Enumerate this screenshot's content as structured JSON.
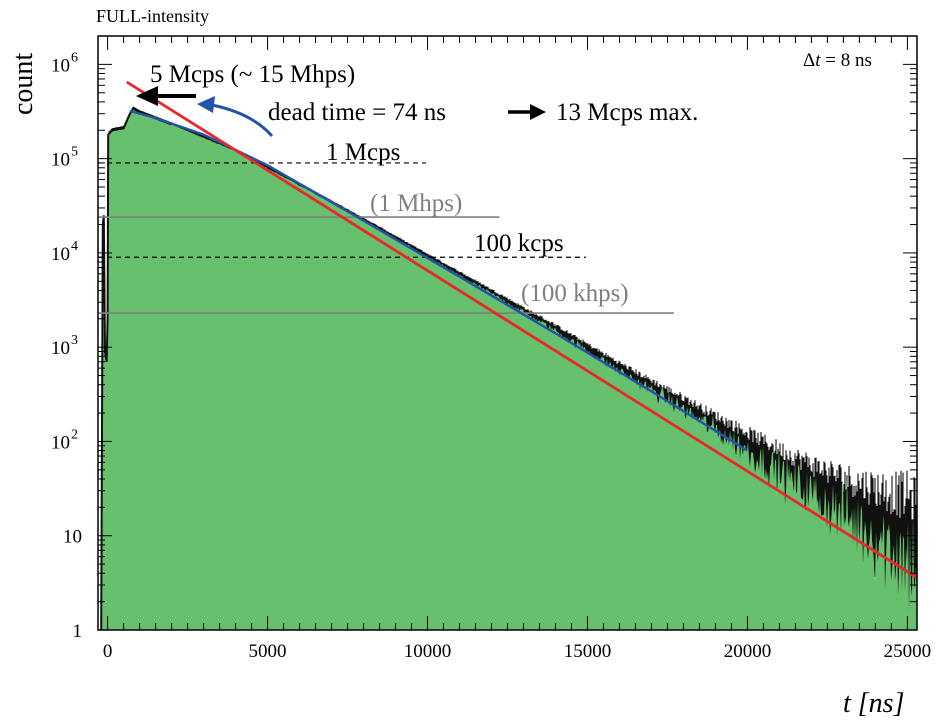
{
  "chart_data": {
    "type": "area",
    "title": "FULL-intensity",
    "xlabel": "t [ns]",
    "ylabel": "count",
    "xlim": [
      -300,
      25300
    ],
    "ylim": [
      1,
      2000000
    ],
    "yscale": "log",
    "grid": false,
    "x_ticks": [
      0,
      5000,
      10000,
      15000,
      20000,
      25000
    ],
    "x_tick_labels": [
      "0",
      "5000",
      "10000",
      "15000",
      "20000",
      "25000"
    ],
    "y_ticks": [
      1,
      10,
      100,
      1000,
      10000,
      100000,
      1000000
    ],
    "y_tick_labels": [
      {
        "base": "1",
        "exp": ""
      },
      {
        "base": "10",
        "exp": ""
      },
      {
        "base": "10",
        "exp": "2"
      },
      {
        "base": "10",
        "exp": "3"
      },
      {
        "base": "10",
        "exp": "4"
      },
      {
        "base": "10",
        "exp": "5"
      },
      {
        "base": "10",
        "exp": "6"
      }
    ],
    "series": [
      {
        "values": [
          [
            -200,
            1
          ],
          [
            -150,
            20000
          ],
          [
            -120,
            25000
          ],
          [
            -80,
            900
          ],
          [
            -30,
            700
          ],
          [
            0,
            2000
          ],
          [
            20,
            180000
          ],
          [
            150,
            200000
          ],
          [
            500,
            210000
          ],
          [
            700,
            300000
          ],
          [
            800,
            340000
          ],
          [
            1000,
            310000
          ],
          [
            2000,
            230000
          ],
          [
            4000,
            120000
          ],
          [
            6000,
            52000
          ],
          [
            8000,
            22000
          ],
          [
            10000,
            9000
          ],
          [
            12000,
            3700
          ],
          [
            14000,
            1500
          ],
          [
            16000,
            560
          ],
          [
            18000,
            220
          ],
          [
            20000,
            80
          ],
          [
            22000,
            28
          ],
          [
            24000,
            10
          ],
          [
            25300,
            5
          ]
        ],
        "color": "#66c06d"
      },
      {
        "values": [
          [
            700,
            320000
          ],
          [
            1500,
            270000
          ],
          [
            3000,
            180000
          ],
          [
            5000,
            85000
          ],
          [
            8000,
            22000
          ],
          [
            11000,
            5600
          ],
          [
            14000,
            1400
          ],
          [
            17000,
            340
          ],
          [
            20000,
            80
          ]
        ],
        "color": "#2255aa"
      },
      {
        "values": [
          [
            600,
            650000
          ],
          [
            25300,
            3.6
          ]
        ],
        "color": "#e8282a"
      }
    ],
    "reference_lines": [
      {
        "y": 90000,
        "x_range": [
          -300,
          9950
        ],
        "style": "dashed",
        "color": "#000000"
      },
      {
        "y": 9000,
        "x_range": [
          -300,
          14950
        ],
        "style": "dashed",
        "color": "#000000"
      },
      {
        "y": 24000,
        "x_range": [
          -300,
          12250
        ],
        "style": "solid",
        "color": "#808080"
      },
      {
        "y": 2300,
        "x_range": [
          -300,
          17700
        ],
        "style": "solid",
        "color": "#808080"
      }
    ],
    "annotations": {
      "dt": {
        "delta": "Δ",
        "t": "t",
        "rest": " = 8 ns"
      },
      "mcps5": "5 Mcps (~ 15 Mhps)",
      "dead_time": "dead time = 74 ns",
      "max": "13 Mcps max.",
      "mcps1": "1 Mcps",
      "mhps1": "(1 Mhps)",
      "kcps100": "100 kcps",
      "khps100": "(100 khps)"
    },
    "colors": {
      "fill": "#66c06d",
      "blue": "#2255aa",
      "red": "#e8282a",
      "grey": "#808080",
      "noise": "#111111"
    }
  }
}
